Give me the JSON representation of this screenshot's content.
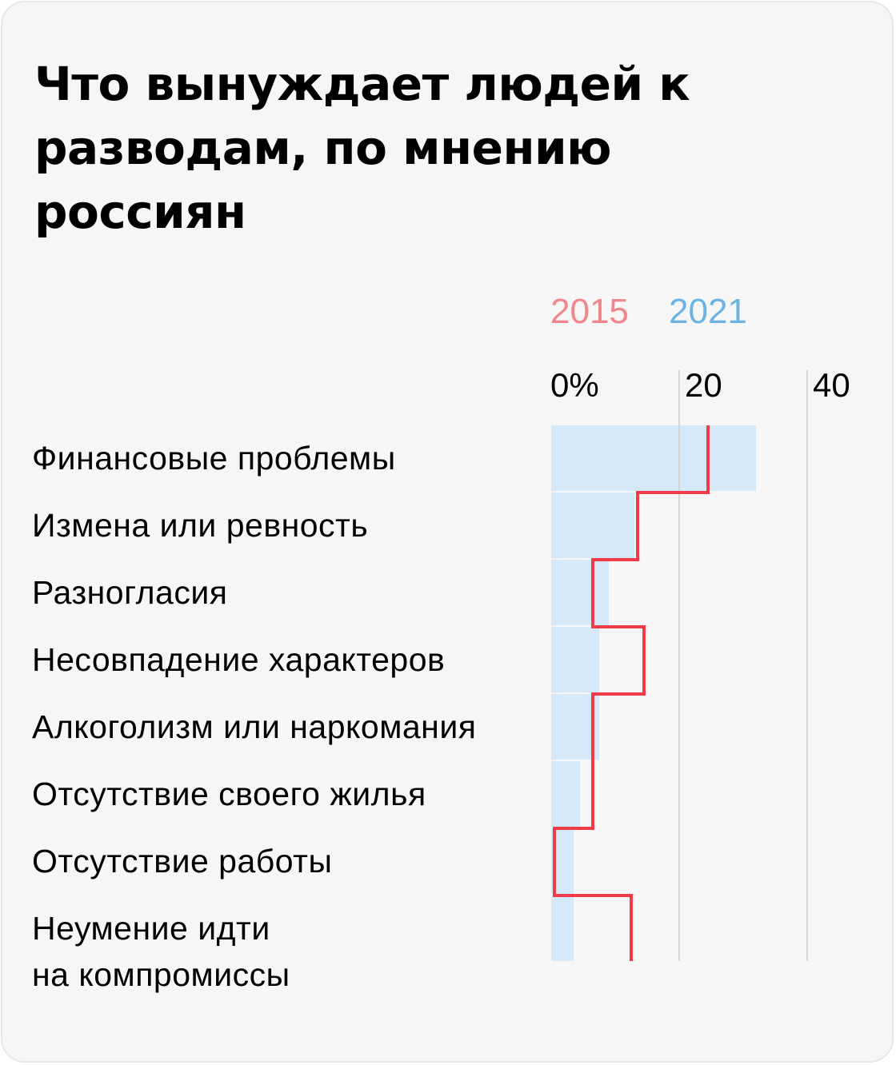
{
  "chart_data": {
    "type": "bar",
    "title": "Что вынуждает людей к разводам, по мнению россиян",
    "legend": {
      "placement": "top",
      "entries": [
        {
          "name": "2015",
          "color": "#f0868a",
          "line_color": "#ef3c49"
        },
        {
          "name": "2021",
          "color": "#6cb3e4",
          "bar_color": "#d5e8f7"
        }
      ]
    },
    "xlim": [
      0,
      40
    ],
    "ticks": [
      "0%",
      "20",
      "40"
    ],
    "tick_values": [
      0,
      20,
      40
    ],
    "grid": true,
    "categories": [
      [
        "Финансовые проблемы"
      ],
      [
        "Измена или ревность"
      ],
      [
        "Разногласия"
      ],
      [
        "Несовпадение характеров"
      ],
      [
        "Алкоголизм или наркомания"
      ],
      [
        "Отсутствие своего жилья"
      ],
      [
        "Отсутствие работы"
      ],
      [
        "Неумение идти",
        "на компромиссы"
      ]
    ],
    "series": [
      {
        "name": "2021",
        "values": [
          32,
          13,
          9,
          7.5,
          7.5,
          4.5,
          3.5,
          3.5
        ]
      },
      {
        "name": "2015",
        "values": [
          24.5,
          13.5,
          6.5,
          14.5,
          6.5,
          6.5,
          0.5,
          12.5
        ]
      }
    ]
  }
}
